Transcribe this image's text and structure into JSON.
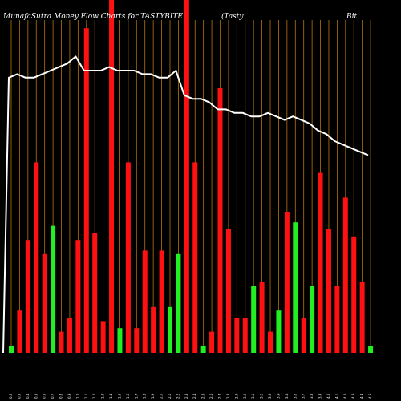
{
  "title": {
    "left": "MunafaSutra  Money Flow  Charts for TASTYBITE",
    "middle": "(Tasty",
    "right": "Bit"
  },
  "colors": {
    "background": "#000000",
    "grid": "#b8740c",
    "up": "#22ee22",
    "down": "#ff1111",
    "price_line": "#ffffff"
  },
  "chart_data": {
    "type": "bar",
    "ylim": [
      0,
      100
    ],
    "categories": [
      "0.2",
      "0.3",
      "0.4",
      "0.5",
      "0.6",
      "0.7",
      "0.8",
      "0.9",
      "1.0",
      "1.1",
      "1.2",
      "1.3",
      "1.4",
      "1.5",
      "1.6",
      "1.7",
      "1.8",
      "1.9",
      "2.0",
      "2.1",
      "2.2",
      "2.3",
      "2.4",
      "2.5",
      "2.6",
      "2.7",
      "2.8",
      "2.9",
      "3.0",
      "3.1",
      "3.2",
      "3.3",
      "3.4",
      "3.5",
      "3.6",
      "3.7",
      "3.8",
      "3.9",
      "4.0",
      "4.1",
      "4.2",
      "4.3",
      "4.4",
      "4.5"
    ],
    "series": [
      {
        "values": [
          2,
          12,
          32,
          54,
          28,
          36,
          6,
          10,
          32,
          92,
          34,
          9,
          100,
          7,
          54,
          7,
          29,
          13,
          29,
          13,
          28,
          100,
          54,
          2,
          6,
          75,
          35,
          10,
          10,
          19,
          20,
          6,
          12,
          40,
          37,
          10,
          19,
          51,
          35,
          19,
          44,
          33,
          20,
          2
        ],
        "colors": [
          "up",
          "down",
          "down",
          "down",
          "down",
          "up",
          "down",
          "down",
          "down",
          "down",
          "down",
          "down",
          "down",
          "up",
          "down",
          "down",
          "down",
          "down",
          "down",
          "up",
          "up",
          "down",
          "down",
          "up",
          "down",
          "down",
          "down",
          "down",
          "down",
          "up",
          "down",
          "down",
          "up",
          "down",
          "up",
          "down",
          "up",
          "down",
          "down",
          "down",
          "down",
          "down",
          "down",
          "up"
        ]
      }
    ],
    "price_line": [
      78,
      79,
      78,
      78,
      79,
      80,
      81,
      82,
      84,
      80,
      80,
      80,
      81,
      80,
      80,
      80,
      79,
      79,
      78,
      78,
      80,
      73,
      72,
      72,
      71,
      69,
      69,
      68,
      68,
      67,
      67,
      68,
      67,
      66,
      67,
      66,
      65,
      63,
      62,
      60,
      59,
      58,
      57,
      56
    ]
  }
}
